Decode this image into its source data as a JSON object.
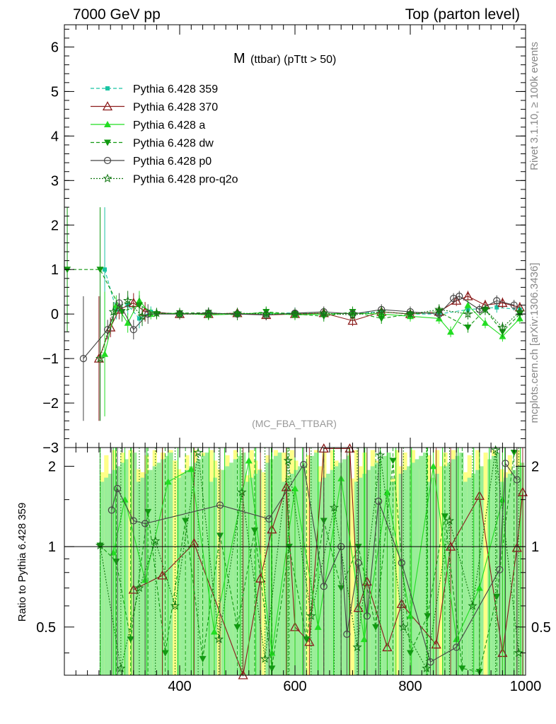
{
  "header": {
    "left": "7000 GeV pp",
    "right": "Top (parton level)"
  },
  "side_labels": {
    "rivet": "Rivet 3.1.10, ≥ 100k events",
    "mcplots": "mcplots.cern.ch [arXiv:1306.3436]"
  },
  "chart_data": [
    {
      "type": "scatter",
      "panel": "main",
      "title_main": "M",
      "title_sub": "(ttbar) (pTtt > 50)",
      "watermark": "(MC_FBA_TTBAR)",
      "ylim": [
        -3,
        6.5
      ],
      "yticks": [
        -3,
        -2,
        -1,
        0,
        1,
        2,
        3,
        4,
        5,
        6
      ],
      "xlim": [
        200,
        1000
      ],
      "grid": false,
      "legend_position": "top-left",
      "series": [
        {
          "name": "Pythia 6.428 359",
          "color": "#19c4a3",
          "marker": "square",
          "line": "dashed",
          "x": [
            270,
            290,
            310,
            330,
            350,
            400,
            450,
            500,
            550,
            600,
            650,
            700,
            750,
            800,
            850,
            900,
            950,
            990
          ],
          "y": [
            1.0,
            0.1,
            0.2,
            -0.1,
            0.05,
            0.0,
            0.02,
            0.0,
            0.0,
            0.03,
            0.0,
            0.02,
            0.05,
            0.0,
            0.0,
            0.1,
            0.15,
            0.1
          ]
        },
        {
          "name": "Pythia 6.428 370",
          "color": "#8b1a1a",
          "marker": "triangle-open",
          "line": "solid",
          "x": [
            260,
            280,
            295,
            320,
            340,
            400,
            450,
            500,
            550,
            600,
            650,
            700,
            750,
            800,
            850,
            880,
            900,
            930,
            960,
            990
          ],
          "y": [
            -1.0,
            -0.3,
            0.1,
            0.25,
            0.05,
            0.0,
            0.0,
            0.02,
            -0.02,
            0.0,
            0.02,
            -0.15,
            0.05,
            0.0,
            0.05,
            0.3,
            0.4,
            0.2,
            0.25,
            0.15
          ]
        },
        {
          "name": "Pythia 6.428 a",
          "color": "#22dd22",
          "marker": "triangle",
          "line": "solid",
          "x": [
            270,
            290,
            310,
            330,
            350,
            400,
            450,
            500,
            550,
            600,
            650,
            700,
            750,
            800,
            850,
            870,
            900,
            930,
            960,
            990
          ],
          "y": [
            -0.9,
            0.2,
            -0.2,
            0.3,
            0.0,
            0.02,
            -0.02,
            0.0,
            0.03,
            -0.02,
            0.0,
            0.02,
            0.0,
            -0.05,
            -0.1,
            -0.4,
            0.2,
            -0.2,
            -0.5,
            -0.1
          ]
        },
        {
          "name": "Pythia 6.428 dw",
          "color": "#119911",
          "marker": "triangle-down",
          "line": "dashed",
          "x": [
            205,
            262,
            300,
            330,
            360,
            400,
            450,
            500,
            550,
            600,
            650,
            700,
            750,
            800,
            850,
            900,
            930,
            960,
            990
          ],
          "y": [
            1.0,
            1.0,
            0.05,
            0.2,
            0.0,
            0.02,
            0.03,
            -0.02,
            0.05,
            0.0,
            -0.05,
            0.05,
            -0.1,
            0.0,
            0.05,
            -0.3,
            0.1,
            -0.4,
            0.0
          ]
        },
        {
          "name": "Pythia 6.428 p0",
          "color": "#444444",
          "marker": "circle-open",
          "line": "solid",
          "x": [
            233,
            275,
            295,
            320,
            345,
            400,
            450,
            500,
            550,
            600,
            650,
            700,
            750,
            800,
            850,
            875,
            885,
            920,
            950,
            980
          ],
          "y": [
            -1.0,
            -0.35,
            0.25,
            -0.35,
            0.0,
            0.0,
            0.02,
            0.0,
            -0.02,
            0.02,
            0.05,
            0.0,
            0.1,
            0.05,
            0.0,
            0.35,
            0.4,
            0.1,
            0.3,
            0.2
          ]
        },
        {
          "name": "Pythia 6.428 pro-q2o",
          "color": "#117711",
          "marker": "star",
          "line": "dotted",
          "x": [
            262,
            285,
            310,
            335,
            360,
            400,
            450,
            500,
            550,
            600,
            650,
            700,
            750,
            800,
            850,
            900,
            930,
            960,
            990
          ],
          "y": [
            -1.0,
            0.05,
            0.3,
            -0.05,
            0.02,
            0.0,
            0.0,
            0.02,
            0.0,
            0.0,
            0.02,
            -0.02,
            0.05,
            0.0,
            0.1,
            0.0,
            0.1,
            -0.3,
            0.05
          ]
        }
      ]
    },
    {
      "type": "scatter",
      "panel": "ratio",
      "ylabel": "Ratio to Pythia 6.428 359",
      "ylim": [
        0.33,
        2.35
      ],
      "yticks": [
        0.5,
        1,
        2
      ],
      "ytick_labels": [
        "0.5",
        "1",
        "2"
      ],
      "xlim": [
        200,
        1000
      ],
      "xticks": [
        400,
        600,
        800,
        1000
      ],
      "xtick_labels": [
        "400",
        "600",
        "800",
        "1000"
      ],
      "reference_line": 1,
      "grid": false,
      "series": [
        {
          "name": "Pythia 6.428 370",
          "x": [
            320,
            370,
            425,
            510,
            540,
            560,
            585,
            600,
            625,
            650,
            695,
            710,
            725,
            760,
            785,
            845,
            870,
            920,
            960,
            985,
            995
          ],
          "y": [
            0.69,
            0.78,
            1.03,
            0.33,
            0.76,
            1.16,
            1.67,
            0.5,
            0.44,
            2.33,
            2.33,
            0.59,
            0.74,
            0.42,
            0.61,
            0.43,
            1.0,
            1.55,
            0.4,
            0.99,
            1.6
          ]
        },
        {
          "name": "Pythia 6.428 a",
          "x": [
            285,
            305,
            340,
            380,
            420,
            460,
            520,
            560,
            600,
            640,
            680,
            720,
            760,
            800,
            840,
            880,
            920,
            960
          ],
          "y": [
            0.95,
            1.5,
            0.75,
            1.75,
            1.95,
            0.48,
            2.1,
            0.4,
            1.65,
            0.5,
            1.8,
            0.45,
            1.6,
            0.55,
            2.0,
            0.45,
            0.7,
            1.5
          ]
        },
        {
          "name": "Pythia 6.428 dw",
          "x": [
            262,
            290,
            315,
            345,
            375,
            410,
            440,
            470,
            500,
            530,
            560,
            590,
            620,
            650,
            680,
            710,
            740,
            770,
            800,
            830,
            860,
            890,
            920,
            950,
            980
          ],
          "y": [
            1.01,
            0.88,
            0.45,
            1.35,
            0.4,
            1.25,
            0.38,
            1.1,
            0.5,
            1.15,
            0.35,
            1.0,
            0.45,
            1.25,
            0.7,
            1.0,
            0.5,
            2.1,
            0.4,
            0.55,
            1.3,
            0.35,
            0.34,
            0.65,
            2.25
          ]
        },
        {
          "name": "Pythia 6.428 p0",
          "x": [
            282,
            292,
            320,
            340,
            470,
            555,
            615,
            650,
            680,
            690,
            710,
            725,
            745,
            785,
            835,
            880,
            955,
            965,
            985
          ],
          "y": [
            1.37,
            1.65,
            1.25,
            1.22,
            1.43,
            1.27,
            2.03,
            0.71,
            1.0,
            0.47,
            0.87,
            0.55,
            1.48,
            0.87,
            0.37,
            0.42,
            0.82,
            2.05,
            1.78
          ]
        },
        {
          "name": "Pythia 6.428 pro-q2o",
          "x": [
            262,
            298,
            330,
            358,
            392,
            432,
            468,
            508,
            548,
            588,
            628,
            668,
            708,
            748,
            788,
            828,
            868,
            908,
            948,
            988
          ],
          "y": [
            1.01,
            0.35,
            0.7,
            1.05,
            0.6,
            2.25,
            0.45,
            1.6,
            0.38,
            2.1,
            0.55,
            1.4,
            0.42,
            2.2,
            0.5,
            0.35,
            1.25,
            0.6,
            2.3,
            0.4
          ]
        }
      ]
    }
  ]
}
